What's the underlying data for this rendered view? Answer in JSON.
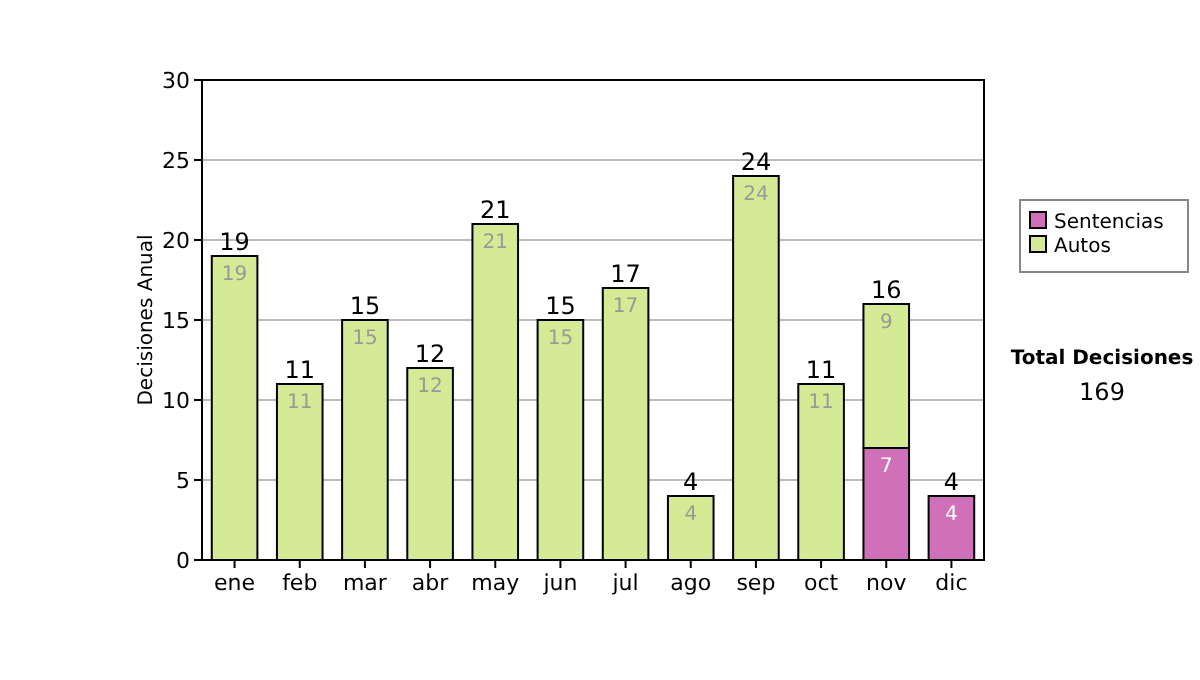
{
  "chart_data": {
    "type": "bar",
    "stacked": true,
    "ylabel": "Decisiones Anual",
    "categories": [
      "ene",
      "feb",
      "mar",
      "abr",
      "may",
      "jun",
      "jul",
      "ago",
      "sep",
      "oct",
      "nov",
      "dic"
    ],
    "series": [
      {
        "name": "Sentencias",
        "color": "#d070b8",
        "values": [
          0,
          0,
          0,
          0,
          0,
          0,
          0,
          0,
          0,
          0,
          7,
          4
        ],
        "value_labels": [
          null,
          null,
          null,
          null,
          null,
          null,
          null,
          null,
          null,
          null,
          "7",
          "4"
        ]
      },
      {
        "name": "Autos",
        "color": "#d4ea94",
        "values": [
          19,
          11,
          15,
          12,
          21,
          15,
          17,
          4,
          24,
          11,
          9,
          0
        ],
        "value_labels": [
          "19",
          "11",
          "15",
          "12",
          "21",
          "15",
          "17",
          "4",
          "24",
          "11",
          "9",
          null
        ]
      }
    ],
    "totals": [
      "19",
      "11",
      "15",
      "12",
      "21",
      "15",
      "17",
      "4",
      "24",
      "11",
      "16",
      "4"
    ],
    "ylim": [
      0,
      30
    ],
    "yticks": [
      0,
      5,
      10,
      15,
      20,
      25,
      30
    ],
    "grid": "y",
    "legend": "right",
    "annotations": [
      "Total Decisiones",
      "169"
    ]
  }
}
